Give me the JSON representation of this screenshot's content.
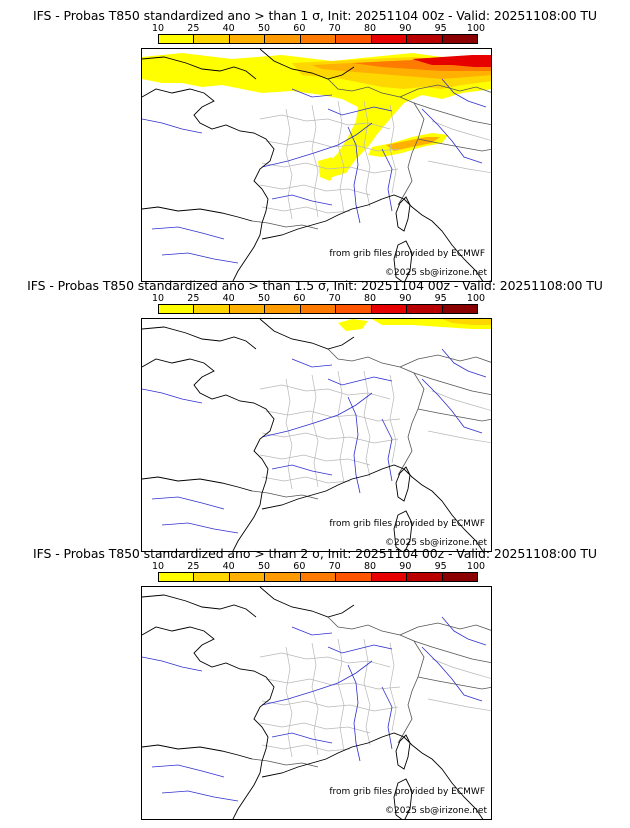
{
  "legend": {
    "ticks": [
      "10",
      "25",
      "40",
      "50",
      "60",
      "70",
      "80",
      "90",
      "95",
      "100"
    ],
    "colors": [
      "#ffff00",
      "#ffd700",
      "#ffb000",
      "#ff9a00",
      "#ff7a00",
      "#ff5500",
      "#e60000",
      "#b80000",
      "#8a0000"
    ]
  },
  "panels": [
    {
      "title": "IFS - Probas T850  standardized ano > than 1 σ, Init: 20251104 00z - Valid: 20251108:00 TU",
      "source": "from grib files provided by ECMWF",
      "copyright": "©2025 sb@irizone.net",
      "threshold_sigma": 1
    },
    {
      "title": "IFS - Probas T850  standardized ano > than 1.5 σ, Init: 20251104 00z - Valid: 20251108:00 TU",
      "source": "from grib files provided by ECMWF",
      "copyright": "©2025 sb@irizone.net",
      "threshold_sigma": 1.5
    },
    {
      "title": "IFS - Probas T850  standardized ano > than 2 σ, Init: 20251104 00z - Valid: 20251108:00 TU",
      "source": "from grib files provided by ECMWF",
      "copyright": "©2025 sb@irizone.net",
      "threshold_sigma": 2
    }
  ]
}
